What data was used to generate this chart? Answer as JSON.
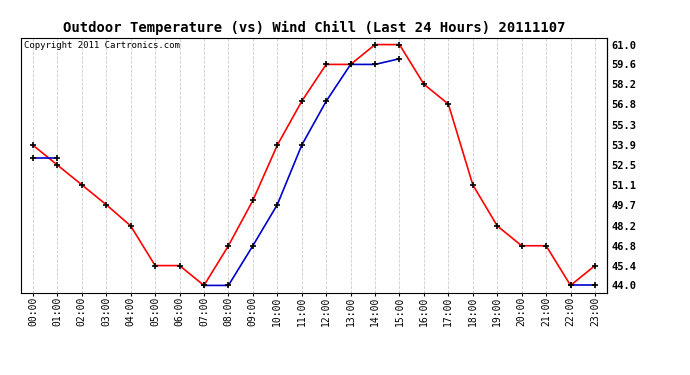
{
  "title": "Outdoor Temperature (vs) Wind Chill (Last 24 Hours) 20111107",
  "copyright": "Copyright 2011 Cartronics.com",
  "hours": [
    "00:00",
    "01:00",
    "02:00",
    "03:00",
    "04:00",
    "05:00",
    "06:00",
    "07:00",
    "08:00",
    "09:00",
    "10:00",
    "11:00",
    "12:00",
    "13:00",
    "14:00",
    "15:00",
    "16:00",
    "17:00",
    "18:00",
    "19:00",
    "20:00",
    "21:00",
    "22:00",
    "23:00"
  ],
  "temp_red": [
    53.9,
    52.5,
    51.1,
    49.7,
    48.2,
    45.4,
    45.4,
    44.0,
    46.8,
    50.0,
    53.9,
    57.0,
    59.6,
    59.6,
    61.0,
    61.0,
    58.2,
    56.8,
    51.1,
    48.2,
    46.8,
    46.8,
    44.0,
    45.4
  ],
  "wind_chill_blue": [
    53.0,
    53.0,
    null,
    null,
    null,
    null,
    null,
    44.0,
    44.0,
    46.8,
    49.7,
    53.9,
    57.0,
    59.6,
    59.6,
    60.0,
    null,
    null,
    null,
    null,
    null,
    null,
    44.0,
    44.0
  ],
  "ylim": [
    43.5,
    61.5
  ],
  "yticks": [
    44.0,
    45.4,
    46.8,
    48.2,
    49.7,
    51.1,
    52.5,
    53.9,
    55.3,
    56.8,
    58.2,
    59.6,
    61.0
  ],
  "red_color": "#ff0000",
  "blue_color": "#0000cc",
  "bg_color": "#ffffff",
  "grid_color": "#cccccc",
  "title_fontsize": 10,
  "copyright_fontsize": 6.5,
  "tick_fontsize": 7,
  "ytick_fontsize": 7.5
}
